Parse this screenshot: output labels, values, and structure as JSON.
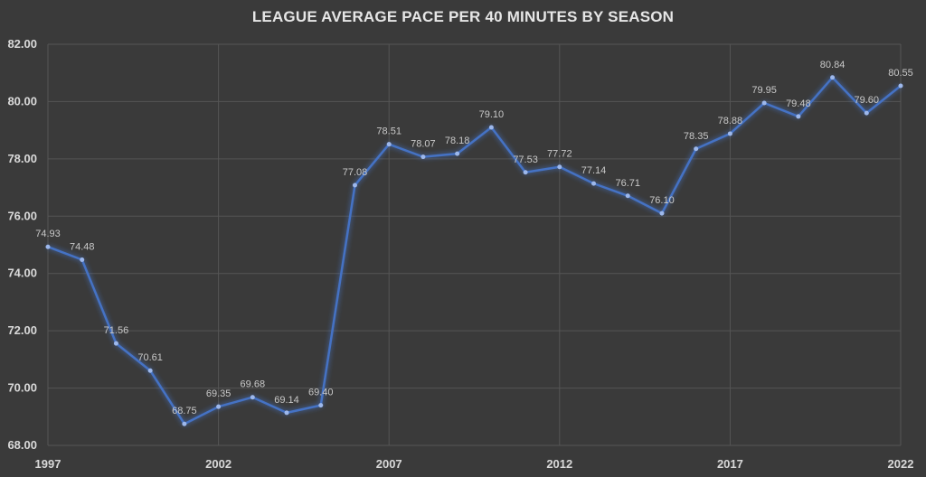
{
  "chart_data": {
    "type": "line",
    "title": "LEAGUE AVERAGE PACE PER 40 MINUTES BY SEASON",
    "xlabel": "",
    "ylabel": "",
    "x": [
      1997,
      1998,
      1999,
      2000,
      2001,
      2002,
      2003,
      2004,
      2005,
      2006,
      2007,
      2008,
      2009,
      2010,
      2011,
      2012,
      2013,
      2014,
      2015,
      2016,
      2017,
      2018,
      2019,
      2020,
      2021,
      2022
    ],
    "series": [
      {
        "values": [
          74.93,
          74.48,
          71.56,
          70.61,
          68.75,
          69.35,
          69.68,
          69.14,
          69.4,
          77.08,
          78.51,
          78.07,
          78.18,
          79.1,
          77.53,
          77.72,
          77.14,
          76.71,
          76.1,
          78.35,
          78.88,
          79.95,
          79.48,
          80.84,
          79.6,
          80.55
        ],
        "labels": [
          "74.93",
          "74.48",
          "71.56",
          "70.61",
          "68.75",
          "69.35",
          "69.68",
          "69.14",
          "69.40",
          "77.08",
          "78.51",
          "78.07",
          "78.18",
          "79.10",
          "77.53",
          "77.72",
          "77.14",
          "76.71",
          "76.10",
          "78.35",
          "78.88",
          "79.95",
          "79.48",
          "80.84",
          "79.60",
          "80.55"
        ],
        "color": "#4472c4"
      }
    ],
    "xticks": [
      "1997",
      "2002",
      "2007",
      "2012",
      "2017",
      "2022"
    ],
    "yticks": [
      "68.00",
      "70.00",
      "72.00",
      "74.00",
      "76.00",
      "78.00",
      "80.00",
      "82.00"
    ],
    "ylim": [
      68,
      82
    ],
    "xlim": [
      1997,
      2022
    ],
    "grid": true,
    "legend": "none"
  }
}
